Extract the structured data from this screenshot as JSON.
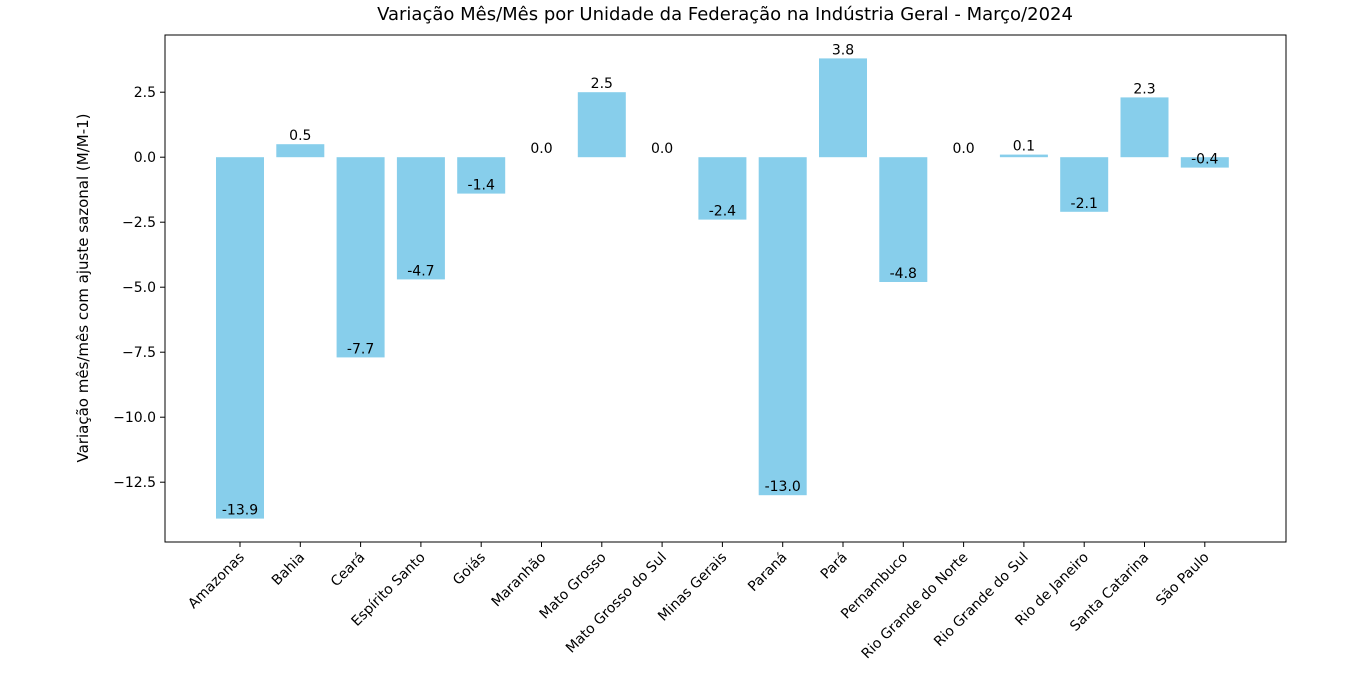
{
  "chart_data": {
    "type": "bar",
    "title": "Variação Mês/Mês por Unidade da Federação na Indústria Geral - Março/2024",
    "xlabel": "",
    "ylabel": "Variação mês/mês com ajuste sazonal (M/M-1)",
    "categories": [
      "Amazonas",
      "Bahia",
      "Ceará",
      "Espírito Santo",
      "Goiás",
      "Maranhão",
      "Mato Grosso",
      "Mato Grosso do Sul",
      "Minas Gerais",
      "Paraná",
      "Pará",
      "Pernambuco",
      "Rio Grande do Norte",
      "Rio Grande do Sul",
      "Rio de Janeiro",
      "Santa Catarina",
      "São Paulo"
    ],
    "values": [
      -13.9,
      0.5,
      -7.7,
      -4.7,
      -1.4,
      0.0,
      2.5,
      0.0,
      -2.4,
      -13.0,
      3.8,
      -4.8,
      0.0,
      0.1,
      -2.1,
      2.3,
      -0.4
    ],
    "data_labels": [
      "-13.9",
      "0.5",
      "-7.7",
      "-4.7",
      "-1.4",
      "0.0",
      "2.5",
      "0.0",
      "-2.4",
      "-13.0",
      "3.8",
      "-4.8",
      "0.0",
      "0.1",
      "-2.1",
      "2.3",
      "-0.4"
    ],
    "yticks": [
      -12.5,
      -10.0,
      -7.5,
      -5.0,
      -2.5,
      0.0,
      2.5
    ],
    "ytick_labels": [
      "−12.5",
      "−10.0",
      "−7.5",
      "−5.0",
      "−2.5",
      "0.0",
      "2.5"
    ],
    "ylim": [
      -14.8,
      4.7
    ],
    "grid": false,
    "bar_color": "#87ceeb"
  }
}
